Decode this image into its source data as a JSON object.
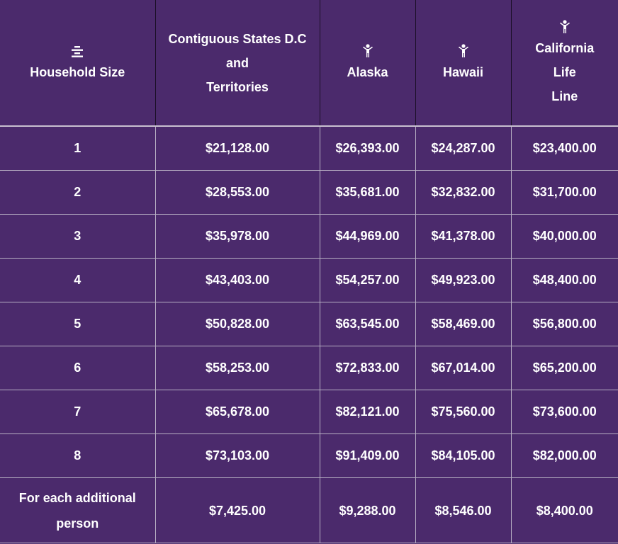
{
  "table": {
    "headers": [
      {
        "label": "Household Size",
        "icon": "list-align-center-icon"
      },
      {
        "label": "Contiguous States D.C\nand\nTerritories",
        "icon": ""
      },
      {
        "label": "Alaska",
        "icon": "person-icon"
      },
      {
        "label": "Hawaii",
        "icon": "person-icon"
      },
      {
        "label": "California\nLife\nLine",
        "icon": "person-icon"
      }
    ],
    "rows": [
      [
        "1",
        "$21,128.00",
        "$26,393.00",
        "$24,287.00",
        "$23,400.00"
      ],
      [
        "2",
        "$28,553.00",
        "$35,681.00",
        "$32,832.00",
        "$31,700.00"
      ],
      [
        "3",
        "$35,978.00",
        "$44,969.00",
        "$41,378.00",
        "$40,000.00"
      ],
      [
        "4",
        "$43,403.00",
        "$54,257.00",
        "$49,923.00",
        "$48,400.00"
      ],
      [
        "5",
        "$50,828.00",
        "$63,545.00",
        "$58,469.00",
        "$56,800.00"
      ],
      [
        "6",
        "$58,253.00",
        "$72,833.00",
        "$67,014.00",
        "$65,200.00"
      ],
      [
        "7",
        "$65,678.00",
        "$82,121.00",
        "$75,560.00",
        "$73,600.00"
      ],
      [
        "8",
        "$73,103.00",
        "$91,409.00",
        "$84,105.00",
        "$82,000.00"
      ],
      [
        "For each additional person",
        "$7,425.00",
        "$9,288.00",
        "$8,546.00",
        "$8,400.00"
      ]
    ]
  },
  "colors": {
    "background": "#4b2a6c",
    "text": "#ffffff",
    "grid": "#b8b0c4"
  }
}
